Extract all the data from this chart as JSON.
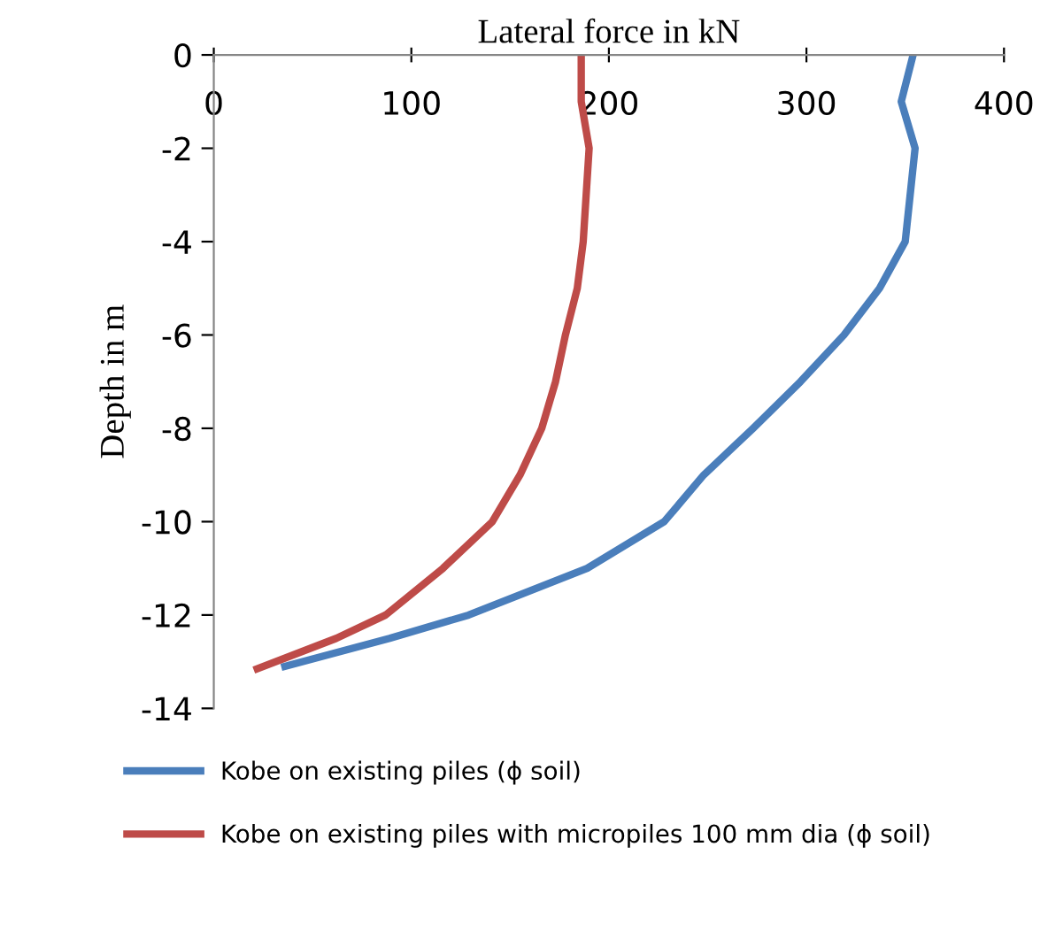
{
  "chart_data": {
    "type": "line",
    "xlabel": "Lateral force in kN",
    "ylabel": "Depth in m",
    "xlim": [
      0,
      400
    ],
    "xticks": [
      0,
      100,
      200,
      300,
      400
    ],
    "ylim": [
      -14,
      0
    ],
    "yticks": [
      -14,
      -12,
      -10,
      -8,
      -6,
      -4,
      -2,
      0
    ],
    "grid": false,
    "legend": "bottom",
    "marker": "none",
    "line_style": "solid",
    "series": [
      {
        "name": "Kobe on existing piles (ϕ soil)",
        "color": "#4a7ebb",
        "x": [
          354,
          348,
          355,
          350,
          337,
          319,
          297,
          273,
          248,
          228,
          189,
          129,
          89,
          36
        ],
        "values": [
          0,
          -1,
          -2,
          -4,
          -5,
          -6,
          -7,
          -8,
          -9,
          -10,
          -11,
          -12,
          -12.5,
          -13.1
        ]
      },
      {
        "name": "Kobe on existing piles with micropiles 100 mm dia (ϕ soil)",
        "color": "#be4b48",
        "x": [
          186,
          186,
          190,
          187,
          184,
          178,
          173,
          166,
          155,
          141,
          116,
          87,
          62,
          22
        ],
        "values": [
          0,
          -1,
          -2,
          -4,
          -5,
          -6,
          -7,
          -8,
          -9,
          -10,
          -11,
          -12,
          -12.5,
          -13.15
        ]
      }
    ]
  }
}
